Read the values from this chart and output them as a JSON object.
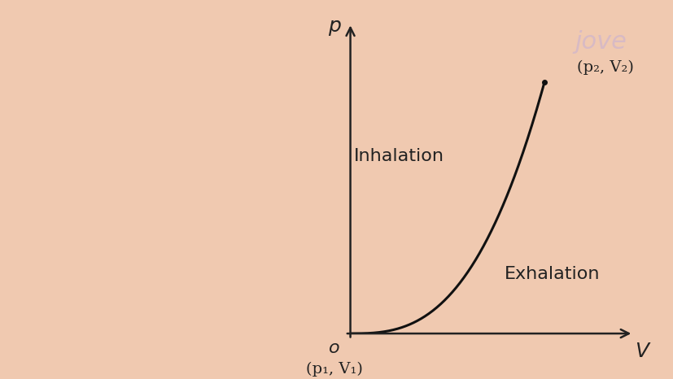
{
  "background_color": "#f0c9b0",
  "chart_bg_color": "#f0c9b0",
  "axis_color": "#222222",
  "curve_color": "#111111",
  "curve_linewidth": 2.2,
  "origin_label": "o",
  "p_label": "p",
  "v_label": "V",
  "point1_label": "(p₁, V₁)",
  "point2_label": "(p₂, V₂)",
  "inhalation_label": "Inhalation",
  "exhalation_label": "Exhalation",
  "jove_text": "jove",
  "jove_color": "#d4b8c8",
  "jove_fontsize": 22,
  "label_fontsize": 16,
  "annotation_fontsize": 15,
  "axis_label_fontsize": 18
}
